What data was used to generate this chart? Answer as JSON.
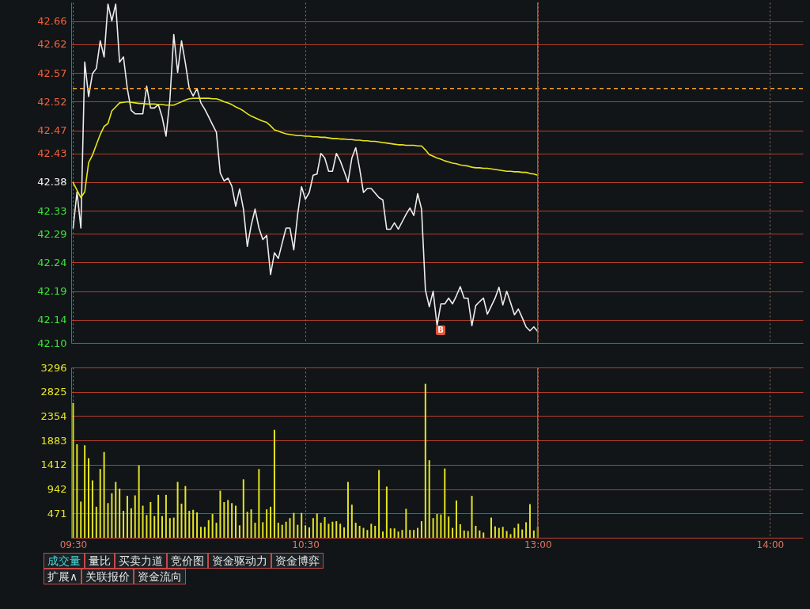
{
  "chart_data": [
    {
      "type": "line",
      "categories": [
        "09:30",
        null,
        null,
        null,
        null,
        null,
        null,
        null,
        null,
        null,
        null,
        null,
        null,
        null,
        null,
        null,
        null,
        null,
        null,
        null,
        null,
        null,
        null,
        null,
        null,
        null,
        null,
        null,
        null,
        null,
        null,
        null,
        null,
        null,
        null,
        null,
        null,
        null,
        null,
        null,
        null,
        null,
        null,
        null,
        null,
        null,
        null,
        null,
        null,
        null,
        null,
        null,
        null,
        null,
        null,
        null,
        null,
        null,
        null,
        null,
        "10:30",
        null,
        null,
        null,
        null,
        null,
        null,
        null,
        null,
        null,
        null,
        null,
        null,
        null,
        null,
        null,
        null,
        null,
        null,
        null,
        null,
        null,
        null,
        null,
        null,
        null,
        null,
        null,
        null,
        null,
        null,
        null,
        null,
        null,
        null,
        null,
        null,
        null,
        null,
        null,
        null,
        null,
        null,
        null,
        null,
        null,
        null,
        null,
        null,
        null,
        null,
        null,
        null,
        null,
        null,
        null,
        null,
        null,
        null,
        null,
        "13:00",
        null,
        null,
        null,
        null,
        null,
        null,
        null,
        null,
        null,
        null,
        null,
        null,
        null,
        null,
        null,
        null,
        null,
        null,
        null,
        null,
        null,
        null,
        null,
        null,
        null,
        null,
        null,
        null,
        null,
        null,
        null,
        null,
        null,
        null,
        null,
        null,
        null,
        null,
        null,
        null,
        null,
        null,
        null,
        null,
        null,
        null,
        null,
        null,
        null,
        null,
        null,
        null,
        null,
        null,
        null,
        null,
        null,
        null,
        null,
        "14:00",
        null,
        null,
        null,
        null,
        null,
        null,
        null,
        null
      ],
      "series": [
        {
          "color": "#ececec",
          "values": [
            42.3,
            42.363,
            42.3,
            42.589,
            42.529,
            42.569,
            42.578,
            42.626,
            42.598,
            42.69,
            42.661,
            42.69,
            42.589,
            42.598,
            42.543,
            42.505,
            42.499,
            42.499,
            42.499,
            42.547,
            42.509,
            42.509,
            42.515,
            42.493,
            42.46,
            42.524,
            42.637,
            42.571,
            42.626,
            42.587,
            42.543,
            42.53,
            42.543,
            42.518,
            42.507,
            42.494,
            42.48,
            42.467,
            42.396,
            42.382,
            42.387,
            42.373,
            42.338,
            42.368,
            42.333,
            42.268,
            42.305,
            42.333,
            42.3,
            42.28,
            42.287,
            42.219,
            42.257,
            42.247,
            42.274,
            42.3,
            42.3,
            42.262,
            42.324,
            42.372,
            42.35,
            42.362,
            42.392,
            42.394,
            42.43,
            42.422,
            42.399,
            42.399,
            42.43,
            42.417,
            42.399,
            42.38,
            42.422,
            42.44,
            42.404,
            42.362,
            42.369,
            42.369,
            42.361,
            42.353,
            42.349,
            42.298,
            42.298,
            42.309,
            42.298,
            42.311,
            42.324,
            42.335,
            42.322,
            42.36,
            42.333,
            42.192,
            42.163,
            42.19,
            42.13,
            42.168,
            42.168,
            42.178,
            42.168,
            42.182,
            42.198,
            42.178,
            42.178,
            42.13,
            42.165,
            42.172,
            42.178,
            42.15,
            42.164,
            42.178,
            42.197,
            42.166,
            42.19,
            42.17,
            42.149,
            42.159,
            42.144,
            42.128,
            42.121,
            42.128,
            42.12,
            null,
            null,
            null,
            null,
            null,
            null,
            null,
            null,
            null,
            null,
            null,
            null,
            null,
            null,
            null,
            null,
            null,
            null,
            null,
            null,
            null,
            null,
            null,
            null,
            null,
            null,
            null,
            null,
            null,
            null,
            null,
            null,
            null,
            null,
            null,
            null,
            null,
            null,
            null,
            null,
            null,
            null,
            null,
            null,
            null,
            null,
            null,
            null,
            null,
            null,
            null,
            null,
            null,
            null,
            null,
            null,
            null,
            null,
            null,
            null,
            null,
            null,
            null,
            null,
            null,
            null,
            null,
            null
          ]
        },
        {
          "color": "#e6e619",
          "values": [
            42.379,
            42.366,
            42.353,
            42.363,
            42.414,
            42.427,
            42.445,
            42.463,
            42.477,
            42.482,
            42.504,
            42.511,
            42.518,
            42.519,
            42.52,
            42.519,
            42.518,
            42.517,
            42.517,
            42.516,
            42.516,
            42.516,
            42.515,
            42.515,
            42.514,
            42.514,
            42.514,
            42.517,
            42.52,
            42.523,
            42.525,
            42.526,
            42.526,
            42.526,
            42.526,
            42.526,
            42.525,
            42.525,
            42.523,
            42.52,
            42.518,
            42.515,
            42.511,
            42.508,
            42.504,
            42.499,
            42.495,
            42.492,
            42.489,
            42.486,
            42.484,
            42.478,
            42.471,
            42.469,
            42.466,
            42.464,
            42.463,
            42.462,
            42.461,
            42.461,
            42.46,
            42.46,
            42.459,
            42.459,
            42.458,
            42.458,
            42.457,
            42.456,
            42.456,
            42.455,
            42.455,
            42.454,
            42.454,
            42.453,
            42.453,
            42.452,
            42.452,
            42.451,
            42.451,
            42.45,
            42.449,
            42.448,
            42.447,
            42.446,
            42.445,
            42.445,
            42.444,
            42.444,
            42.444,
            42.443,
            42.443,
            42.436,
            42.428,
            42.425,
            42.422,
            42.42,
            42.417,
            42.415,
            42.413,
            42.412,
            42.41,
            42.409,
            42.408,
            42.406,
            42.405,
            42.405,
            42.404,
            42.404,
            42.403,
            42.402,
            42.401,
            42.4,
            42.399,
            42.399,
            42.398,
            42.398,
            42.397,
            42.397,
            42.395,
            42.394,
            42.392,
            null,
            null,
            null,
            null,
            null,
            null,
            null,
            null,
            null,
            null,
            null,
            null,
            null,
            null,
            null,
            null,
            null,
            null,
            null,
            null,
            null,
            null,
            null,
            null,
            null,
            null,
            null,
            null,
            null,
            null,
            null,
            null,
            null,
            null,
            null,
            null,
            null,
            null,
            null,
            null,
            null,
            null,
            null,
            null,
            null,
            null,
            null,
            null,
            null,
            null,
            null,
            null,
            null,
            null,
            null,
            null,
            null,
            null,
            null,
            null,
            null,
            null,
            null,
            null,
            null,
            null,
            null,
            null
          ]
        }
      ],
      "ylim": [
        42.1,
        42.693
      ],
      "yticks": [
        {
          "value": 42.1,
          "label": "42.10"
        },
        42.14,
        42.19,
        42.24,
        42.29,
        42.33,
        42.38,
        42.43,
        42.47,
        42.52,
        42.57,
        42.62,
        42.66
      ],
      "grid": true,
      "tick_labels": "y",
      "ref_lines": [
        {
          "axis": "y",
          "value": 42.543,
          "color": "#f0a030",
          "line_style": "dashed"
        },
        {
          "axis": "x",
          "value": "13:00",
          "color": "#e84a30"
        }
      ],
      "annotations": [
        "B"
      ]
    },
    {
      "type": "bar",
      "categories": [
        "09:30",
        null,
        null,
        null,
        null,
        null,
        null,
        null,
        null,
        null,
        null,
        null,
        null,
        null,
        null,
        null,
        null,
        null,
        null,
        null,
        null,
        null,
        null,
        null,
        null,
        null,
        null,
        null,
        null,
        null,
        null,
        null,
        null,
        null,
        null,
        null,
        null,
        null,
        null,
        null,
        null,
        null,
        null,
        null,
        null,
        null,
        null,
        null,
        null,
        null,
        null,
        null,
        null,
        null,
        null,
        null,
        null,
        null,
        null,
        null,
        "10:30",
        null,
        null,
        null,
        null,
        null,
        null,
        null,
        null,
        null,
        null,
        null,
        null,
        null,
        null,
        null,
        null,
        null,
        null,
        null,
        null,
        null,
        null,
        null,
        null,
        null,
        null,
        null,
        null,
        null,
        null,
        null,
        null,
        null,
        null,
        null,
        null,
        null,
        null,
        null,
        null,
        null,
        null,
        null,
        null,
        null,
        null,
        null,
        null,
        null,
        null,
        null,
        null,
        null,
        null,
        null,
        null,
        null,
        null,
        null,
        "13:00",
        null,
        null,
        null,
        null,
        null,
        null,
        null,
        null,
        null,
        null,
        null,
        null,
        null,
        null,
        null,
        null,
        null,
        null,
        null,
        null,
        null,
        null,
        null,
        null,
        null,
        null,
        null,
        null,
        null,
        null,
        null,
        null,
        null,
        null,
        null,
        null,
        null,
        null,
        null,
        null,
        null,
        null,
        null,
        null,
        null,
        null,
        null,
        null,
        null,
        null,
        null,
        null,
        null,
        null,
        null,
        null,
        null,
        null,
        null,
        "14:00",
        null,
        null,
        null,
        null,
        null,
        null,
        null,
        null
      ],
      "values": [
        2610,
        1810,
        700,
        1790,
        1540,
        1110,
        600,
        1330,
        1660,
        670,
        860,
        1080,
        950,
        520,
        810,
        570,
        820,
        1400,
        620,
        440,
        690,
        420,
        830,
        420,
        830,
        380,
        390,
        1080,
        660,
        1000,
        520,
        540,
        490,
        210,
        210,
        340,
        460,
        290,
        910,
        690,
        730,
        670,
        620,
        240,
        1130,
        500,
        550,
        290,
        1330,
        300,
        550,
        600,
        2090,
        290,
        250,
        310,
        380,
        480,
        250,
        480,
        240,
        200,
        380,
        470,
        290,
        400,
        270,
        310,
        320,
        270,
        200,
        1080,
        640,
        290,
        230,
        190,
        150,
        270,
        230,
        1310,
        120,
        990,
        180,
        180,
        120,
        150,
        560,
        150,
        150,
        190,
        320,
        2980,
        1500,
        380,
        460,
        450,
        1340,
        410,
        190,
        720,
        260,
        140,
        130,
        810,
        230,
        140,
        100,
        null,
        390,
        220,
        190,
        210,
        130,
        70,
        190,
        270,
        160,
        300,
        650,
        140,
        210,
        null,
        null,
        null,
        null,
        null,
        null,
        null,
        null,
        null,
        null,
        null,
        null,
        null,
        null,
        null,
        null,
        null,
        null,
        null,
        null,
        null,
        null,
        null,
        null,
        null,
        null,
        null,
        null,
        null,
        null,
        null,
        null,
        null,
        null,
        null,
        null,
        null,
        null,
        null,
        null,
        null,
        null,
        null,
        null,
        null,
        null,
        null,
        null,
        null,
        null,
        null,
        null,
        null,
        null,
        null,
        null,
        null,
        null,
        null,
        null,
        null,
        null,
        null,
        null,
        null,
        null,
        null,
        null
      ],
      "color": "#e4e424",
      "ylim": [
        0,
        3296
      ],
      "yticks": [
        471,
        942,
        1412,
        1883,
        2354,
        2825,
        3296
      ],
      "grid": true,
      "ref_lines": [
        {
          "axis": "x",
          "value": "13:00",
          "color": "#e84a30"
        }
      ],
      "annotations": [
        "成交量",
        "量比",
        "买卖力道",
        "竞价图",
        "资金驱动力",
        "资金博弈",
        "扩展∧",
        "关联报价",
        "资金流向"
      ]
    }
  ]
}
